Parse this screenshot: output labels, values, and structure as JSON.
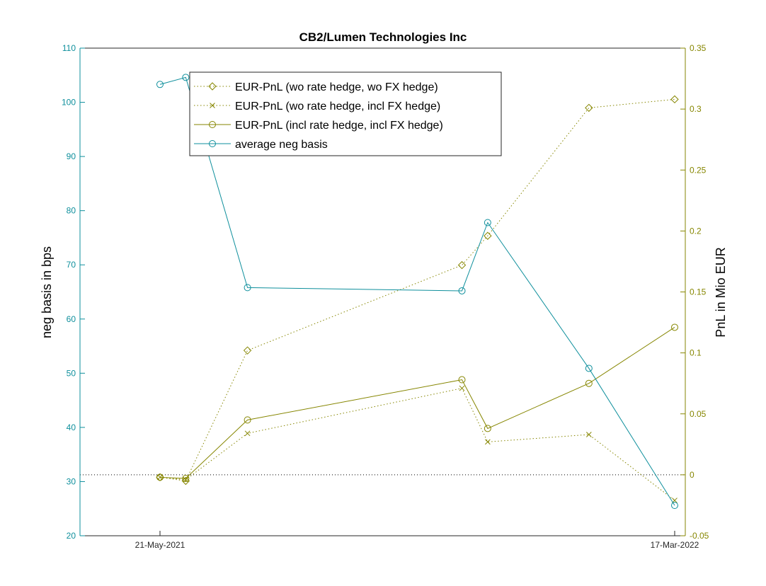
{
  "chart_data": {
    "type": "line",
    "title": "CB2/Lumen Technologies Inc",
    "x_axis": {
      "type": "date",
      "tick_labels": [
        "21-May-2021",
        "17-Mar-2022"
      ],
      "ticks": [
        "2021-05-21",
        "2022-03-17"
      ]
    },
    "y_left": {
      "label": "neg basis in bps",
      "range": [
        20,
        110
      ],
      "ticks": [
        20,
        30,
        40,
        50,
        60,
        70,
        80,
        90,
        100,
        110
      ],
      "color": "#0e8f9c"
    },
    "y_right": {
      "label": "PnL in Mio EUR",
      "range": [
        -0.05,
        0.35
      ],
      "ticks": [
        "-0.05",
        "0",
        "0.05",
        "0.1",
        "0.15",
        "0.2",
        "0.25",
        "0.3",
        "0.35"
      ],
      "color": "#868600"
    },
    "zero_line": {
      "axis": "right",
      "value": 0,
      "style": "dotted",
      "color": "#000000"
    },
    "legend": {
      "placement": "top-left inside"
    },
    "series": [
      {
        "name": "EUR-PnL (wo rate hedge, wo FX hedge)",
        "axis": "right",
        "line": "dotted",
        "marker": "diamond",
        "color": "#868600",
        "points": [
          {
            "x": "2021-05-21",
            "y": -0.002
          },
          {
            "x": "2021-06-05",
            "y": -0.005
          },
          {
            "x": "2021-07-11",
            "y": 0.102
          },
          {
            "x": "2021-11-13",
            "y": 0.172
          },
          {
            "x": "2021-11-28",
            "y": 0.196
          },
          {
            "x": "2022-01-26",
            "y": 0.301
          },
          {
            "x": "2022-03-17",
            "y": 0.308
          }
        ]
      },
      {
        "name": "EUR-PnL (wo rate hedge, incl FX hedge)",
        "axis": "right",
        "line": "dotted",
        "marker": "x",
        "color": "#868600",
        "points": [
          {
            "x": "2021-05-21",
            "y": -0.002
          },
          {
            "x": "2021-06-05",
            "y": -0.004
          },
          {
            "x": "2021-07-11",
            "y": 0.034
          },
          {
            "x": "2021-11-13",
            "y": 0.071
          },
          {
            "x": "2021-11-28",
            "y": 0.027
          },
          {
            "x": "2022-01-26",
            "y": 0.033
          },
          {
            "x": "2022-03-17",
            "y": -0.021
          }
        ]
      },
      {
        "name": "EUR-PnL (incl rate hedge, incl FX hedge)",
        "axis": "right",
        "line": "solid",
        "marker": "circle",
        "color": "#868600",
        "points": [
          {
            "x": "2021-05-21",
            "y": -0.002
          },
          {
            "x": "2021-06-05",
            "y": -0.003
          },
          {
            "x": "2021-07-11",
            "y": 0.045
          },
          {
            "x": "2021-11-13",
            "y": 0.078
          },
          {
            "x": "2021-11-28",
            "y": 0.038
          },
          {
            "x": "2022-01-26",
            "y": 0.075
          },
          {
            "x": "2022-03-17",
            "y": 0.121
          }
        ]
      },
      {
        "name": "average neg basis",
        "axis": "left",
        "line": "solid",
        "marker": "circle",
        "color": "#0e8f9c",
        "points": [
          {
            "x": "2021-05-21",
            "y": 103.3
          },
          {
            "x": "2021-06-05",
            "y": 104.6
          },
          {
            "x": "2021-07-11",
            "y": 65.8
          },
          {
            "x": "2021-11-13",
            "y": 65.2
          },
          {
            "x": "2021-11-28",
            "y": 77.8
          },
          {
            "x": "2022-01-26",
            "y": 50.9
          },
          {
            "x": "2022-03-17",
            "y": 25.6
          }
        ]
      }
    ]
  }
}
